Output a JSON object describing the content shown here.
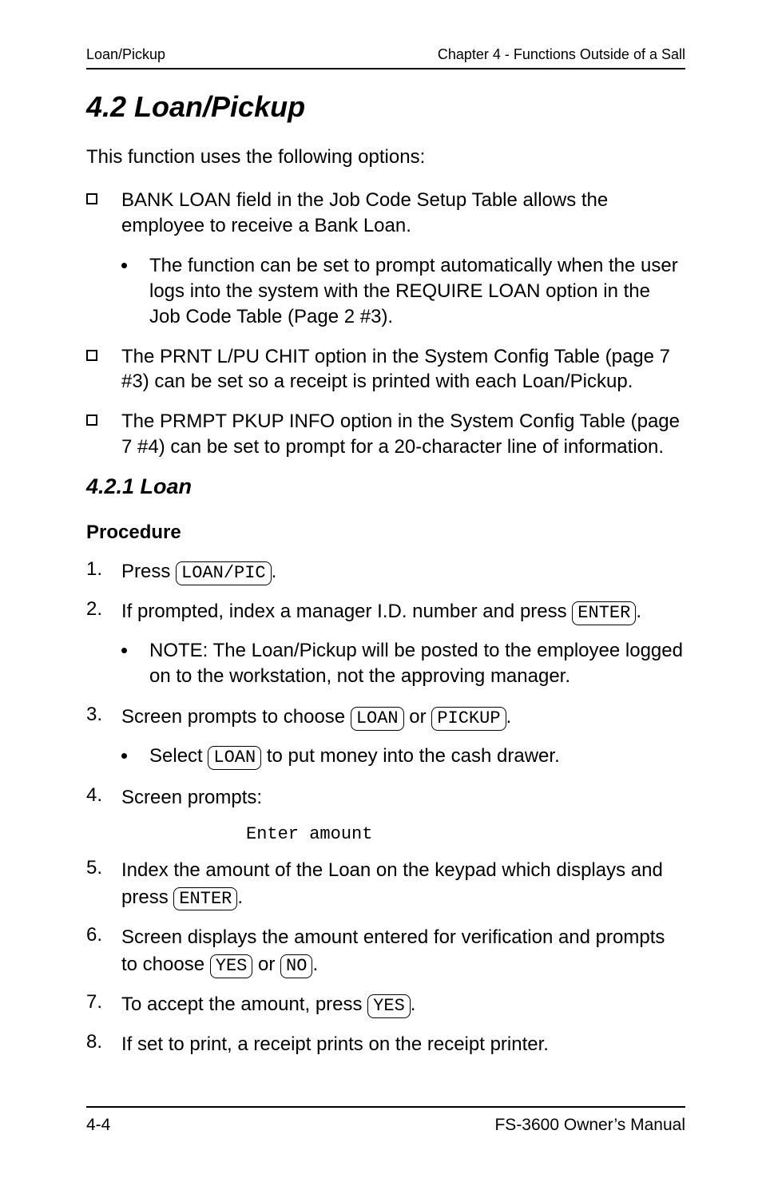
{
  "running_head": {
    "left": "Loan/Pickup",
    "right": "Chapter 4 - Functions Outside of a Sall"
  },
  "section": {
    "number": "4.2",
    "title": "Loan/Pickup"
  },
  "intro": "This function uses the following options:",
  "bullets": [
    {
      "text": "BANK LOAN field in the Job Code Setup Table allows the employee to receive a Bank Loan.",
      "subs": [
        "The function can be set to prompt automatically when the user logs into the system with the REQUIRE LOAN option in the Job Code Table (Page 2 #3)."
      ]
    },
    {
      "text": "The PRNT L/PU CHIT option in the System Config Table (page 7 #3) can be set so a receipt is printed with each Loan/Pickup.",
      "subs": []
    },
    {
      "text": "The PRMPT PKUP INFO option in the System Config Table (page 7 #4) can be set to prompt for a 20-character line of information.",
      "subs": []
    }
  ],
  "subsection": {
    "number": "4.2.1",
    "title": "Loan"
  },
  "procedure_heading": "Procedure",
  "steps": {
    "s1_pre": "Press ",
    "s1_key": "LOAN/PIC",
    "s1_post": ".",
    "s2_pre": "If prompted, index a manager I.D. number and press ",
    "s2_key": "ENTER",
    "s2_post": ".",
    "s2_sub": "NOTE:  The Loan/Pickup will be posted to the employee logged on to the workstation, not the approving manager.",
    "s3_pre": "Screen prompts to choose ",
    "s3_key1": "LOAN",
    "s3_mid": " or ",
    "s3_key2": "PICKUP",
    "s3_post": ".",
    "s3_sub_pre": "Select ",
    "s3_sub_key": "LOAN",
    "s3_sub_post": " to put money into the cash drawer.",
    "s4": "Screen prompts:",
    "s4_mono": "Enter amount",
    "s5_pre": "Index the amount of the Loan on the keypad which displays and press ",
    "s5_key": "ENTER",
    "s5_post": ".",
    "s6_pre": "Screen displays the amount entered for verification and prompts to choose ",
    "s6_key1": "YES",
    "s6_mid": " or ",
    "s6_key2": "NO",
    "s6_post": ".",
    "s7_pre": "To accept the amount, press ",
    "s7_key": "YES",
    "s7_post": ".",
    "s8": "If set to print, a receipt prints on the receipt printer."
  },
  "step_labels": {
    "n1": "1.",
    "n2": "2.",
    "n3": "3.",
    "n4": "4.",
    "n5": "5.",
    "n6": "6.",
    "n7": "7.",
    "n8": "8."
  },
  "section_title_full": "4.2    Loan/Pickup",
  "subsection_title_full": "4.2.1    Loan",
  "footer": {
    "left": "4-4",
    "right": "FS-3600 Owner’s Manual"
  }
}
